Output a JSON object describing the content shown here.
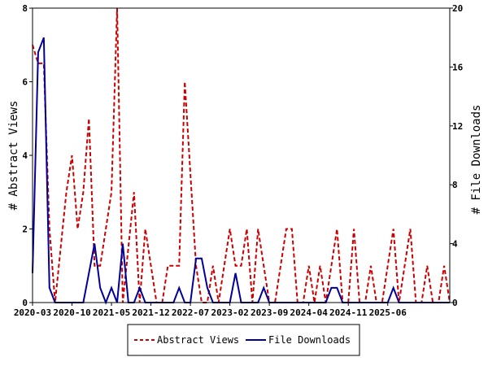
{
  "chart_data": {
    "type": "line",
    "title": "",
    "ylabel_left": "# Abstract Views",
    "ylabel_right": "# File Downloads",
    "ylim_left": [
      0,
      8
    ],
    "ylim_right": [
      0,
      20
    ],
    "yticks_left": [
      "0",
      "2",
      "4",
      "6",
      "8"
    ],
    "yticks_right": [
      "0",
      "4",
      "8",
      "12",
      "16",
      "20"
    ],
    "xticks": [
      "2020-03",
      "2020-10",
      "2021-05",
      "2021-12",
      "2022-07",
      "2023-02",
      "2023-09",
      "2024-04",
      "2024-11",
      "2025-06"
    ],
    "grid": false,
    "legend_position": "bottom-center",
    "series": [
      {
        "name": "Abstract Views",
        "axis": "left",
        "color": "#cc0000",
        "style": "dashed",
        "values": [
          7,
          6.5,
          6.5,
          2,
          0,
          1.5,
          3,
          4,
          2,
          3,
          5,
          1,
          1,
          2,
          3,
          8,
          0,
          1.5,
          3,
          0,
          2,
          1,
          0,
          0,
          1,
          1,
          1,
          6,
          3.5,
          1,
          0,
          0,
          1,
          0,
          1,
          2,
          1,
          1,
          2,
          0,
          2,
          1,
          0,
          0,
          1,
          2,
          2,
          0,
          0,
          1,
          0,
          1,
          0,
          1,
          2,
          0,
          0,
          2,
          0,
          0,
          1,
          0,
          0,
          1,
          2,
          0,
          1,
          2,
          0,
          0,
          1,
          0,
          0,
          1,
          0
        ]
      },
      {
        "name": "File Downloads",
        "axis": "right",
        "color": "#000099",
        "style": "solid",
        "values": [
          2,
          17,
          18,
          1,
          0,
          0,
          0,
          0,
          0,
          0,
          2,
          4,
          1,
          0,
          1,
          0,
          4,
          0,
          0,
          1,
          0,
          0,
          0,
          0,
          0,
          0,
          1,
          0,
          0,
          3,
          3,
          1,
          0,
          0,
          0,
          0,
          2,
          0,
          0,
          0,
          0,
          1,
          0,
          0,
          0,
          0,
          0,
          0,
          0,
          0,
          0,
          0,
          0,
          1,
          1,
          0,
          0,
          0,
          0,
          0,
          0,
          0,
          0,
          0,
          1,
          0,
          0,
          0,
          0,
          0,
          0,
          0,
          0,
          0,
          0
        ]
      }
    ]
  }
}
